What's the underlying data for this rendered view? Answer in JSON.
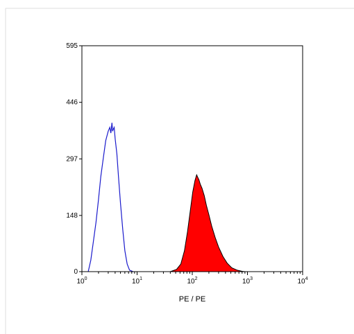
{
  "chart_data": {
    "type": "area",
    "xlabel": "PE / PE",
    "ylabel": "",
    "xscale": "log",
    "xlim": [
      1,
      10000
    ],
    "ylim": [
      0,
      595
    ],
    "y_ticks": [
      {
        "value": 0,
        "label": "0"
      },
      {
        "value": 148,
        "label": "148"
      },
      {
        "value": 297,
        "label": "297"
      },
      {
        "value": 446,
        "label": "446"
      },
      {
        "value": 595,
        "label": "595"
      }
    ],
    "x_ticks": [
      {
        "value": 1,
        "base": "10",
        "exp": "0"
      },
      {
        "value": 10,
        "base": "10",
        "exp": "1"
      },
      {
        "value": 100,
        "base": "10",
        "exp": "2"
      },
      {
        "value": 1000,
        "base": "10",
        "exp": "3"
      },
      {
        "value": 10000,
        "base": "10",
        "exp": "4"
      }
    ],
    "grid": false,
    "series": [
      {
        "style": "outline",
        "color": "#1a1acc",
        "points": [
          [
            1.3,
            0
          ],
          [
            1.45,
            30
          ],
          [
            1.6,
            75
          ],
          [
            1.8,
            130
          ],
          [
            2.0,
            190
          ],
          [
            2.2,
            250
          ],
          [
            2.45,
            300
          ],
          [
            2.7,
            345
          ],
          [
            3.0,
            370
          ],
          [
            3.2,
            380
          ],
          [
            3.35,
            365
          ],
          [
            3.5,
            392
          ],
          [
            3.6,
            370
          ],
          [
            3.7,
            375
          ],
          [
            3.85,
            380
          ],
          [
            4.0,
            350
          ],
          [
            4.3,
            310
          ],
          [
            4.6,
            250
          ],
          [
            5.0,
            180
          ],
          [
            5.5,
            110
          ],
          [
            6.0,
            55
          ],
          [
            6.6,
            20
          ],
          [
            7.3,
            4
          ],
          [
            8.5,
            0
          ]
        ]
      },
      {
        "style": "filled",
        "color": "#ff0000",
        "points": [
          [
            40,
            0
          ],
          [
            52,
            6
          ],
          [
            62,
            20
          ],
          [
            72,
            55
          ],
          [
            82,
            105
          ],
          [
            92,
            160
          ],
          [
            102,
            210
          ],
          [
            112,
            240
          ],
          [
            120,
            255
          ],
          [
            126,
            248
          ],
          [
            132,
            242
          ],
          [
            140,
            230
          ],
          [
            150,
            220
          ],
          [
            165,
            200
          ],
          [
            180,
            175
          ],
          [
            200,
            150
          ],
          [
            225,
            120
          ],
          [
            260,
            90
          ],
          [
            300,
            65
          ],
          [
            360,
            40
          ],
          [
            430,
            22
          ],
          [
            520,
            10
          ],
          [
            650,
            4
          ],
          [
            800,
            1
          ],
          [
            900,
            0
          ]
        ]
      }
    ]
  }
}
